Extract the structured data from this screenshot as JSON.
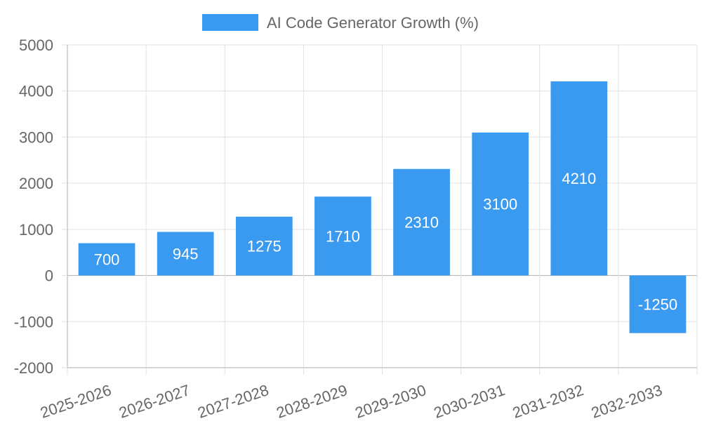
{
  "colors": {
    "bar": "#3a9af0",
    "grid": "#e1e1e1",
    "axis": "#c8c8c8",
    "zero_line": "#b0b0b0",
    "text": "#666666",
    "data_label": "#ffffff"
  },
  "chart_data": {
    "type": "bar",
    "categories": [
      "2025-2026",
      "2026-2027",
      "2027-2028",
      "2028-2029",
      "2029-2030",
      "2030-2031",
      "2031-2032",
      "2032-2033"
    ],
    "series": [
      {
        "name": "AI Code Generator Growth (%)",
        "values": [
          700,
          945,
          1275,
          1710,
          2310,
          3100,
          4210,
          -1250
        ]
      }
    ],
    "ylim": [
      -2000,
      5000
    ],
    "yticks": [
      -2000,
      -1000,
      0,
      1000,
      2000,
      3000,
      4000,
      5000
    ],
    "grid": true,
    "legend_position": "top-center",
    "data_labels": true
  }
}
